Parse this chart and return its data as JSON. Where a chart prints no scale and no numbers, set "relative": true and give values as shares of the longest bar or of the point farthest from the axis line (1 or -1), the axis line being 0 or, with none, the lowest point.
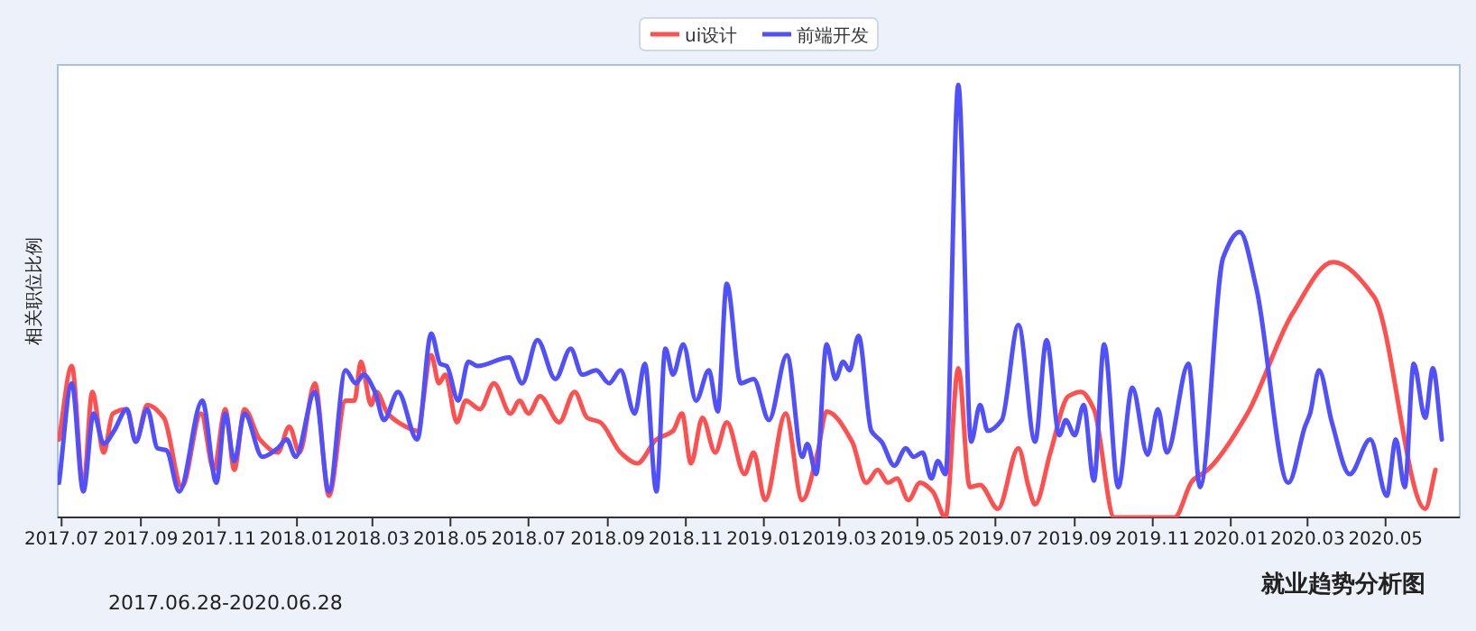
{
  "chart_data": {
    "type": "line",
    "relative": true,
    "ylabel": "相关职位比例",
    "legend": "top",
    "annotations": [
      "2017.06.28-2020.06.28",
      "就业趋势分析图"
    ],
    "xlim": [
      "2017-06-28",
      "2020-06-28"
    ],
    "xticks": [
      {
        "value": "2017-07",
        "label": "2017.07"
      },
      {
        "value": "2017-09",
        "label": "2017.09"
      },
      {
        "value": "2017-11",
        "label": "2017.11"
      },
      {
        "value": "2018-01",
        "label": "2018.01"
      },
      {
        "value": "2018-03",
        "label": "2018.03"
      },
      {
        "value": "2018-05",
        "label": "2018.05"
      },
      {
        "value": "2018-07",
        "label": "2018.07"
      },
      {
        "value": "2018-09",
        "label": "2018.09"
      },
      {
        "value": "2018-11",
        "label": "2018.11"
      },
      {
        "value": "2019-01",
        "label": "2019.01"
      },
      {
        "value": "2019-03",
        "label": "2019.03"
      },
      {
        "value": "2019-05",
        "label": "2019.05"
      },
      {
        "value": "2019-07",
        "label": "2019.07"
      },
      {
        "value": "2019-09",
        "label": "2019.09"
      },
      {
        "value": "2019-11",
        "label": "2019.11"
      },
      {
        "value": "2020-01",
        "label": "2020.01"
      },
      {
        "value": "2020-03",
        "label": "2020.03"
      },
      {
        "value": "2020-05",
        "label": "2020.05"
      }
    ],
    "series": [
      {
        "name": "ui设计",
        "color": "#ff5050",
        "x": [
          "2017-06-29",
          "2017-07-09",
          "2017-07-18",
          "2017-07-25",
          "2017-08-03",
          "2017-08-10",
          "2017-08-21",
          "2017-08-28",
          "2017-09-06",
          "2017-09-19",
          "2017-10-03",
          "2017-10-18",
          "2017-10-28",
          "2017-11-06",
          "2017-11-13",
          "2017-11-21",
          "2017-12-03",
          "2017-12-17",
          "2017-12-26",
          "2018-01-03",
          "2018-01-15",
          "2018-01-26",
          "2018-02-08",
          "2018-02-15",
          "2018-02-20",
          "2018-02-28",
          "2018-03-04",
          "2018-03-13",
          "2018-03-27",
          "2018-04-05",
          "2018-04-16",
          "2018-04-22",
          "2018-04-27",
          "2018-05-06",
          "2018-05-13",
          "2018-05-24",
          "2018-06-04",
          "2018-06-17",
          "2018-06-24",
          "2018-07-01",
          "2018-07-10",
          "2018-07-25",
          "2018-08-06",
          "2018-08-16",
          "2018-08-26",
          "2018-09-11",
          "2018-09-24",
          "2018-10-09",
          "2018-10-22",
          "2018-10-29",
          "2018-11-05",
          "2018-11-14",
          "2018-11-24",
          "2018-12-03",
          "2018-12-17",
          "2018-12-24",
          "2019-01-02",
          "2019-01-18",
          "2019-01-31",
          "2019-02-12",
          "2019-02-19",
          "2019-03-11",
          "2019-03-22",
          "2019-03-31",
          "2019-04-08",
          "2019-04-15",
          "2019-04-24",
          "2019-05-03",
          "2019-05-13",
          "2019-05-23",
          "2019-06-02",
          "2019-06-11",
          "2019-06-19",
          "2019-07-03",
          "2019-07-19",
          "2019-07-27",
          "2019-08-01",
          "2019-08-13",
          "2019-08-27",
          "2019-09-06",
          "2019-09-16",
          "2019-10-02",
          "2019-11-18",
          "2019-12-02",
          "2019-12-14",
          "2020-01-14",
          "2020-02-18",
          "2020-03-21",
          "2020-04-22",
          "2020-06-01",
          "2020-06-09"
        ],
        "values": [
          0.18,
          0.35,
          0.07,
          0.29,
          0.15,
          0.24,
          0.25,
          0.175,
          0.26,
          0.23,
          0.07,
          0.24,
          0.11,
          0.25,
          0.11,
          0.25,
          0.18,
          0.15,
          0.21,
          0.15,
          0.31,
          0.05,
          0.27,
          0.27,
          0.36,
          0.26,
          0.29,
          0.24,
          0.21,
          0.2,
          0.375,
          0.31,
          0.33,
          0.22,
          0.27,
          0.25,
          0.31,
          0.24,
          0.27,
          0.24,
          0.28,
          0.22,
          0.29,
          0.23,
          0.22,
          0.15,
          0.125,
          0.18,
          0.2,
          0.24,
          0.125,
          0.23,
          0.15,
          0.22,
          0.1,
          0.15,
          0.04,
          0.24,
          0.04,
          0.15,
          0.245,
          0.175,
          0.08,
          0.11,
          0.08,
          0.09,
          0.04,
          0.08,
          0.06,
          0,
          0.345,
          0.07,
          0.075,
          0.02,
          0.16,
          0.07,
          0.03,
          0.15,
          0.28,
          0.29,
          0.25,
          0,
          0,
          0.085,
          0.11,
          0.24,
          0.47,
          0.59,
          0.51,
          0.02,
          0.11
        ]
      },
      {
        "name": "前端开发",
        "color": "#5050ff",
        "x": [
          "2017-06-29",
          "2017-07-09",
          "2017-07-18",
          "2017-07-26",
          "2017-08-03",
          "2017-08-11",
          "2017-08-21",
          "2017-08-28",
          "2017-09-06",
          "2017-09-14",
          "2017-09-21",
          "2017-10-01",
          "2017-10-19",
          "2017-10-30",
          "2017-11-06",
          "2017-11-13",
          "2017-11-21",
          "2017-12-05",
          "2017-12-17",
          "2017-12-24",
          "2017-12-31",
          "2018-01-15",
          "2018-01-26",
          "2018-02-08",
          "2018-02-16",
          "2018-02-22",
          "2018-03-03",
          "2018-03-10",
          "2018-03-21",
          "2018-04-05",
          "2018-04-16",
          "2018-04-23",
          "2018-04-28",
          "2018-05-07",
          "2018-05-15",
          "2018-05-22",
          "2018-06-16",
          "2018-06-26",
          "2018-07-08",
          "2018-07-22",
          "2018-08-03",
          "2018-08-12",
          "2018-08-23",
          "2018-09-02",
          "2018-09-11",
          "2018-09-22",
          "2018-09-30",
          "2018-10-09",
          "2018-10-16",
          "2018-10-22",
          "2018-10-30",
          "2018-11-09",
          "2018-11-19",
          "2018-11-26",
          "2018-12-03",
          "2018-12-14",
          "2018-12-24",
          "2019-01-05",
          "2019-01-19",
          "2019-01-31",
          "2019-02-04",
          "2019-02-11",
          "2019-02-19",
          "2019-02-26",
          "2019-03-04",
          "2019-03-09",
          "2019-03-16",
          "2019-03-26",
          "2019-04-03",
          "2019-04-13",
          "2019-04-22",
          "2019-04-28",
          "2019-05-05",
          "2019-05-12",
          "2019-05-17",
          "2019-05-23",
          "2019-06-02",
          "2019-06-12",
          "2019-06-19",
          "2019-06-25",
          "2019-07-06",
          "2019-07-19",
          "2019-08-01",
          "2019-08-10",
          "2019-08-20",
          "2019-08-25",
          "2019-09-01",
          "2019-09-08",
          "2019-09-16",
          "2019-09-24",
          "2019-10-05",
          "2019-10-16",
          "2019-10-28",
          "2019-11-05",
          "2019-11-12",
          "2019-11-29",
          "2019-12-08",
          "2019-12-26",
          "2020-01-08",
          "2020-01-21",
          "2020-02-15",
          "2020-02-28",
          "2020-03-03",
          "2020-03-10",
          "2020-03-20",
          "2020-04-03",
          "2020-04-19",
          "2020-05-02",
          "2020-05-09",
          "2020-05-16",
          "2020-05-23",
          "2020-06-01",
          "2020-06-07",
          "2020-06-14"
        ],
        "values": [
          0.08,
          0.31,
          0.06,
          0.24,
          0.17,
          0.2,
          0.25,
          0.175,
          0.25,
          0.16,
          0.155,
          0.06,
          0.27,
          0.08,
          0.24,
          0.13,
          0.24,
          0.14,
          0.16,
          0.18,
          0.14,
          0.29,
          0.06,
          0.34,
          0.31,
          0.33,
          0.29,
          0.225,
          0.29,
          0.18,
          0.425,
          0.355,
          0.35,
          0.27,
          0.36,
          0.35,
          0.37,
          0.31,
          0.41,
          0.32,
          0.39,
          0.33,
          0.34,
          0.31,
          0.34,
          0.24,
          0.355,
          0.06,
          0.39,
          0.33,
          0.4,
          0.27,
          0.34,
          0.245,
          0.54,
          0.31,
          0.32,
          0.225,
          0.375,
          0.14,
          0.17,
          0.1,
          0.4,
          0.32,
          0.36,
          0.34,
          0.42,
          0.2,
          0.175,
          0.12,
          0.16,
          0.14,
          0.15,
          0.09,
          0.13,
          0.1,
          1.0,
          0.175,
          0.26,
          0.2,
          0.225,
          0.445,
          0.175,
          0.41,
          0.19,
          0.225,
          0.19,
          0.26,
          0.085,
          0.4,
          0.07,
          0.3,
          0.145,
          0.25,
          0.15,
          0.355,
          0.07,
          0.6,
          0.66,
          0.53,
          0.08,
          0.21,
          0.24,
          0.34,
          0.22,
          0.1,
          0.18,
          0.05,
          0.18,
          0.07,
          0.355,
          0.23,
          0.345,
          0.18
        ]
      }
    ]
  }
}
